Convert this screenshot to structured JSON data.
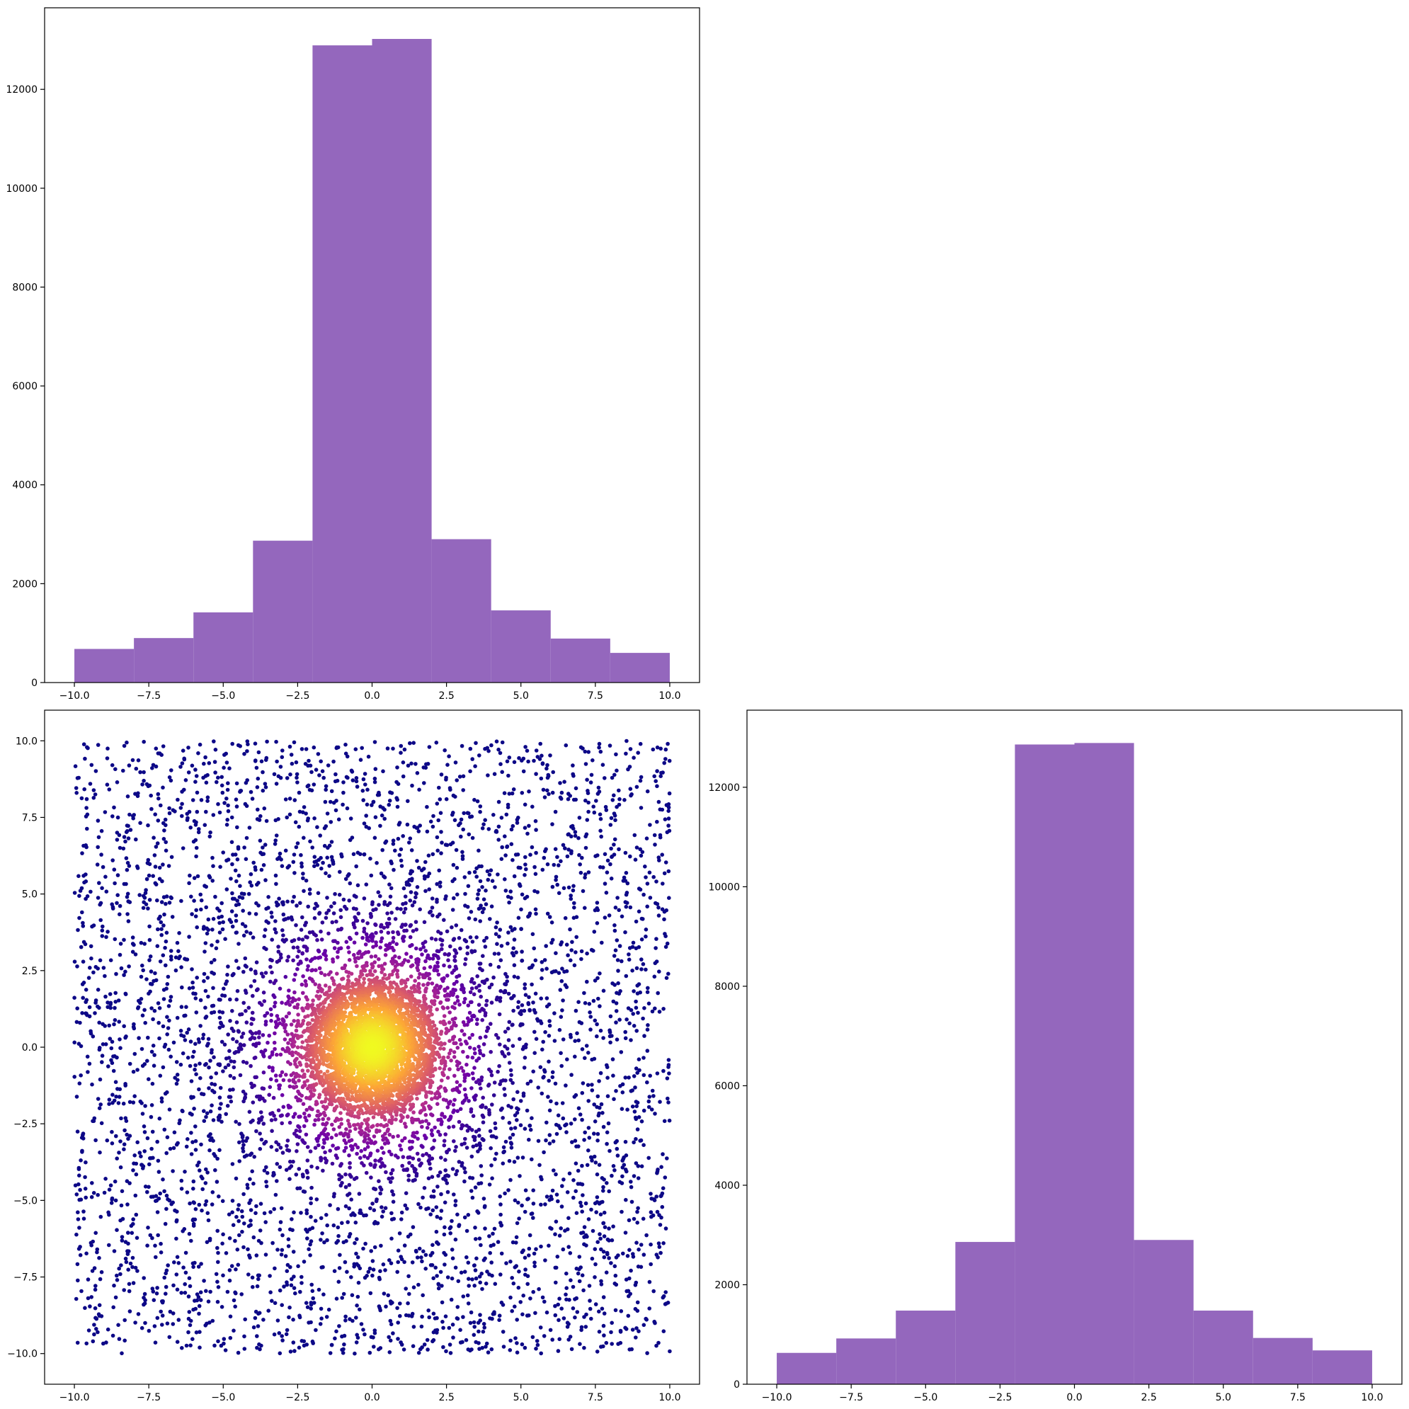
{
  "chart_data": [
    {
      "name": "top-left-histogram",
      "type": "bar",
      "categories": [
        "-10 to -8",
        "-8 to -6",
        "-6 to -4",
        "-4 to -2",
        "-2 to 0",
        "0 to 2",
        "2 to 4",
        "4 to 6",
        "6 to 8",
        "8 to 10"
      ],
      "bin_edges": [
        -10,
        -8,
        -6,
        -4,
        -2,
        0,
        2,
        4,
        6,
        8,
        10
      ],
      "values": [
        680,
        900,
        1420,
        2870,
        12890,
        13020,
        2900,
        1460,
        890,
        600
      ],
      "color": "#9467bd",
      "xlim": [
        -11,
        11
      ],
      "ylim": [
        0,
        13650
      ],
      "xticks": [
        -10.0,
        -7.5,
        -5.0,
        -2.5,
        0.0,
        2.5,
        5.0,
        7.5,
        10.0
      ],
      "xtick_labels": [
        "−10.0",
        "−7.5",
        "−5.0",
        "−2.5",
        "0.0",
        "2.5",
        "5.0",
        "7.5",
        "10.0"
      ],
      "yticks": [
        0,
        2000,
        4000,
        6000,
        8000,
        10000,
        12000
      ],
      "ytick_labels": [
        "0",
        "2000",
        "4000",
        "6000",
        "8000",
        "10000",
        "12000"
      ],
      "title": "",
      "xlabel": "",
      "ylabel": ""
    },
    {
      "name": "bottom-left-scatter",
      "type": "scatter",
      "description_points": "uniform random points on [-10,10] x [-10,10] plus a dense gaussian cluster centred at (0,0), colored by point density with the plasma colormap",
      "x_range": [
        -10,
        10
      ],
      "y_range": [
        -10,
        10
      ],
      "cluster_center": [
        0,
        0
      ],
      "colormap": [
        "#0d0887",
        "#6a00a8",
        "#b12a90",
        "#e16462",
        "#fca636",
        "#f0f921"
      ],
      "xlim": [
        -11,
        11
      ],
      "ylim": [
        -11,
        11
      ],
      "xticks": [
        -10.0,
        -7.5,
        -5.0,
        -2.5,
        0.0,
        2.5,
        5.0,
        7.5,
        10.0
      ],
      "xtick_labels": [
        "−10.0",
        "−7.5",
        "−5.0",
        "−2.5",
        "0.0",
        "2.5",
        "5.0",
        "7.5",
        "10.0"
      ],
      "yticks": [
        -10.0,
        -7.5,
        -5.0,
        -2.5,
        0.0,
        2.5,
        5.0,
        7.5,
        10.0
      ],
      "ytick_labels": [
        "−10.0",
        "−7.5",
        "−5.0",
        "−2.5",
        "0.0",
        "2.5",
        "5.0",
        "7.5",
        "10.0"
      ],
      "title": "",
      "xlabel": "",
      "ylabel": ""
    },
    {
      "name": "bottom-right-histogram",
      "type": "bar",
      "categories": [
        "-10 to -8",
        "-8 to -6",
        "-6 to -4",
        "-4 to -2",
        "-2 to 0",
        "0 to 2",
        "2 to 4",
        "4 to 6",
        "6 to 8",
        "8 to 10"
      ],
      "bin_edges": [
        -10,
        -8,
        -6,
        -4,
        -2,
        0,
        2,
        4,
        6,
        8,
        10
      ],
      "values": [
        630,
        920,
        1480,
        2860,
        12860,
        12890,
        2900,
        1480,
        930,
        680
      ],
      "color": "#9467bd",
      "xlim": [
        -11,
        11
      ],
      "ylim": [
        0,
        13550
      ],
      "xticks": [
        -10.0,
        -7.5,
        -5.0,
        -2.5,
        0.0,
        2.5,
        5.0,
        7.5,
        10.0
      ],
      "xtick_labels": [
        "−10.0",
        "−7.5",
        "−5.0",
        "−2.5",
        "0.0",
        "2.5",
        "5.0",
        "7.5",
        "10.0"
      ],
      "yticks": [
        0,
        2000,
        4000,
        6000,
        8000,
        10000,
        12000
      ],
      "ytick_labels": [
        "0",
        "2000",
        "4000",
        "6000",
        "8000",
        "10000",
        "12000"
      ],
      "title": "",
      "xlabel": "",
      "ylabel": ""
    }
  ]
}
